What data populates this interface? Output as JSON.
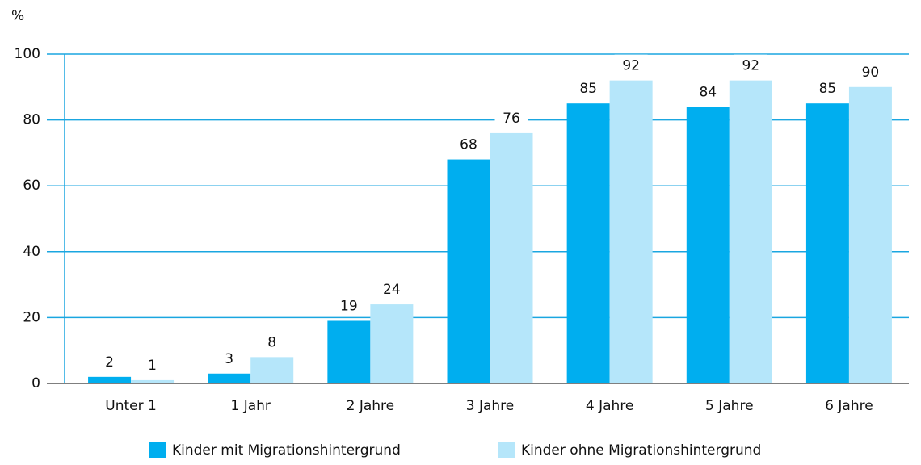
{
  "chart_data": {
    "type": "bar",
    "y_label": "%",
    "categories": [
      "Unter 1",
      "1 Jahr",
      "2 Jahre",
      "3 Jahre",
      "4 Jahre",
      "5 Jahre",
      "6 Jahre"
    ],
    "series": [
      {
        "name": "Kinder mit Migrationshintergrund",
        "color": "#00aeef",
        "values": [
          2,
          3,
          19,
          68,
          85,
          84,
          85
        ]
      },
      {
        "name": "Kinder ohne Migrationshintergrund",
        "color": "#b5e6fa",
        "values": [
          1,
          8,
          24,
          76,
          92,
          92,
          90
        ]
      }
    ],
    "ylim": [
      0,
      100
    ],
    "yticks": [
      0,
      20,
      40,
      60,
      80,
      100
    ],
    "grid": true,
    "legend": "bottom"
  }
}
